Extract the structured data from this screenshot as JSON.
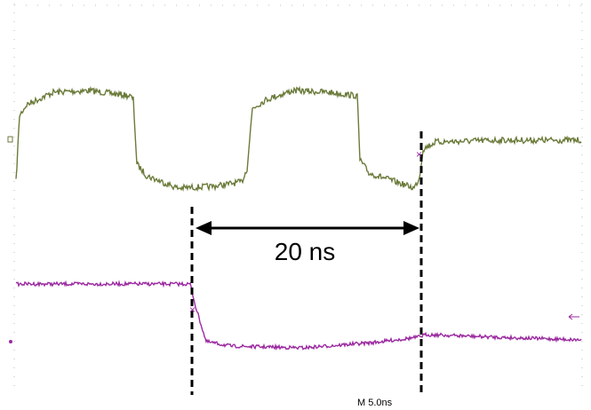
{
  "annotation": "20 ns",
  "timebase": "M 5.0ns"
}
